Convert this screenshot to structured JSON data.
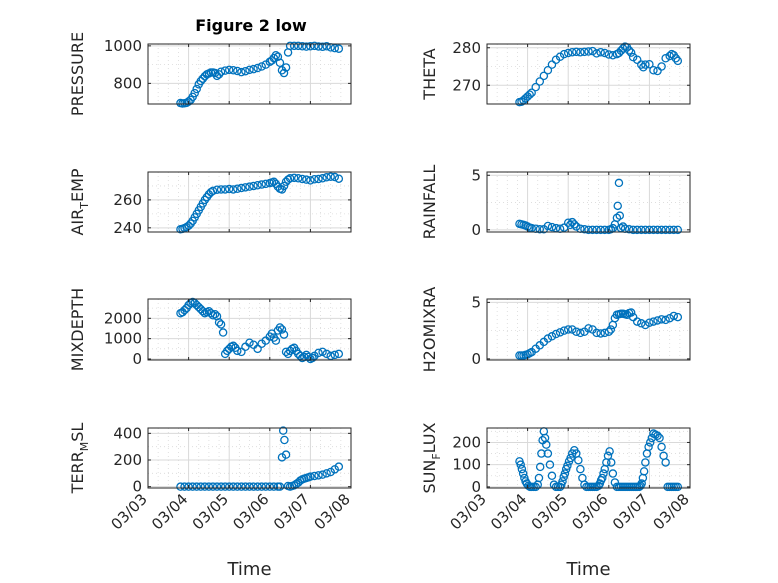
{
  "figure": {
    "title": "Figure 2 low"
  },
  "chart_data": [
    {
      "type": "scatter",
      "ylabel": "PRESSURE",
      "xlabel": "",
      "ylim": [
        690,
        1010
      ],
      "yticks": [
        800,
        1000
      ],
      "x": [
        3.8,
        3.85,
        3.9,
        3.95,
        4.0,
        4.05,
        4.1,
        4.15,
        4.2,
        4.25,
        4.3,
        4.35,
        4.4,
        4.45,
        4.5,
        4.55,
        4.6,
        4.65,
        4.7,
        4.75,
        4.8,
        4.9,
        5.0,
        5.1,
        5.2,
        5.3,
        5.4,
        5.5,
        5.6,
        5.7,
        5.8,
        5.9,
        6.0,
        6.05,
        6.1,
        6.15,
        6.2,
        6.25,
        6.3,
        6.35,
        6.4,
        6.45,
        6.5,
        6.6,
        6.7,
        6.8,
        6.9,
        7.0,
        7.1,
        7.2,
        7.3,
        7.4,
        7.5,
        7.6,
        7.7
      ],
      "y": [
        695,
        693,
        694,
        696,
        703,
        712,
        728,
        748,
        770,
        795,
        812,
        825,
        838,
        848,
        853,
        858,
        858,
        855,
        840,
        848,
        862,
        868,
        872,
        870,
        866,
        860,
        865,
        872,
        876,
        882,
        890,
        900,
        915,
        922,
        935,
        950,
        942,
        910,
        870,
        855,
        885,
        965,
        1000,
        1000,
        1000,
        998,
        996,
        998,
        1000,
        997,
        995,
        998,
        992,
        988,
        985
      ]
    },
    {
      "type": "scatter",
      "ylabel": "THETA",
      "xlabel": "",
      "ylim": [
        265,
        281
      ],
      "yticks": [
        270,
        280
      ],
      "x": [
        3.8,
        3.85,
        3.9,
        3.95,
        4.0,
        4.05,
        4.1,
        4.2,
        4.3,
        4.4,
        4.5,
        4.6,
        4.7,
        4.8,
        4.9,
        5.0,
        5.1,
        5.2,
        5.3,
        5.4,
        5.5,
        5.6,
        5.7,
        5.8,
        5.9,
        6.0,
        6.1,
        6.2,
        6.25,
        6.3,
        6.35,
        6.4,
        6.45,
        6.5,
        6.55,
        6.6,
        6.7,
        6.8,
        6.85,
        6.9,
        7.0,
        7.1,
        7.2,
        7.3,
        7.4,
        7.5,
        7.55,
        7.6,
        7.65,
        7.7
      ],
      "y": [
        265.5,
        265.6,
        266,
        266.5,
        267,
        267.5,
        268,
        269.5,
        271,
        272.5,
        274,
        275.5,
        276.8,
        277.6,
        278.3,
        278.6,
        278.8,
        278.9,
        278.8,
        278.9,
        279,
        279.1,
        278.5,
        278.8,
        278.6,
        278.2,
        278,
        278.3,
        278.6,
        279.2,
        279.8,
        280.3,
        280.1,
        279.3,
        278.7,
        277.5,
        276.8,
        275.5,
        274.8,
        275.5,
        275.6,
        274,
        273.8,
        275,
        277.2,
        277.8,
        278.3,
        278,
        277.2,
        276.5
      ]
    },
    {
      "type": "scatter",
      "ylabel": "AIR_TEMP",
      "xlabel": "",
      "ylim": [
        237,
        280
      ],
      "yticks": [
        240,
        260
      ],
      "x": [
        3.8,
        3.85,
        3.9,
        3.95,
        4.0,
        4.05,
        4.1,
        4.15,
        4.2,
        4.25,
        4.3,
        4.35,
        4.4,
        4.45,
        4.5,
        4.55,
        4.6,
        4.7,
        4.8,
        4.9,
        5.0,
        5.1,
        5.2,
        5.3,
        5.4,
        5.5,
        5.6,
        5.7,
        5.8,
        5.9,
        6.0,
        6.05,
        6.1,
        6.15,
        6.2,
        6.25,
        6.3,
        6.35,
        6.4,
        6.45,
        6.5,
        6.6,
        6.7,
        6.8,
        6.9,
        7.0,
        7.1,
        7.2,
        7.3,
        7.4,
        7.5,
        7.6,
        7.7
      ],
      "y": [
        239,
        239.2,
        239.8,
        240.5,
        241.5,
        243,
        245,
        247.5,
        250,
        252.5,
        255,
        257.5,
        260,
        262,
        264,
        265.5,
        266.5,
        267.3,
        267.5,
        267.5,
        267.8,
        267.5,
        268,
        268.5,
        269,
        269.5,
        270,
        270.5,
        271,
        271.5,
        272,
        272.5,
        273,
        271.5,
        269.5,
        268,
        267.5,
        270,
        273,
        274.5,
        275.5,
        275.8,
        275.5,
        275,
        274.5,
        274,
        274.8,
        275,
        275.5,
        276.2,
        276.6,
        276.4,
        275.2
      ]
    },
    {
      "type": "scatter",
      "ylabel": "RAINFALL",
      "xlabel": "",
      "ylim": [
        -0.2,
        5.3
      ],
      "yticks": [
        0,
        5
      ],
      "x": [
        3.8,
        3.85,
        3.9,
        3.95,
        4.0,
        4.05,
        4.1,
        4.2,
        4.3,
        4.4,
        4.5,
        4.6,
        4.7,
        4.8,
        4.9,
        5.0,
        5.05,
        5.1,
        5.15,
        5.2,
        5.3,
        5.4,
        5.5,
        5.6,
        5.7,
        5.8,
        5.9,
        6.0,
        6.05,
        6.1,
        6.15,
        6.2,
        6.22,
        6.25,
        6.27,
        6.3,
        6.35,
        6.4,
        6.5,
        6.6,
        6.7,
        6.8,
        6.9,
        7.0,
        7.1,
        7.2,
        7.3,
        7.4,
        7.5,
        7.6,
        7.7
      ],
      "y": [
        0.55,
        0.5,
        0.45,
        0.4,
        0.3,
        0.2,
        0.15,
        0.1,
        0.05,
        0.05,
        0.35,
        0.25,
        0.15,
        0.1,
        0.2,
        0.65,
        0.45,
        0.7,
        0.5,
        0.3,
        0.1,
        0.05,
        0,
        0,
        0,
        0,
        0,
        0,
        0.05,
        0.15,
        0.5,
        1.1,
        2.2,
        4.3,
        1.3,
        0.15,
        0.3,
        0.1,
        0.05,
        0,
        0,
        0,
        0,
        0,
        0,
        0,
        0,
        0,
        0,
        0,
        0
      ]
    },
    {
      "type": "scatter",
      "ylabel": "MIXDEPTH",
      "xlabel": "",
      "ylim": [
        -50,
        2950
      ],
      "yticks": [
        0,
        1000,
        2000
      ],
      "x": [
        3.8,
        3.85,
        3.9,
        3.95,
        4.0,
        4.05,
        4.1,
        4.15,
        4.2,
        4.25,
        4.3,
        4.35,
        4.4,
        4.45,
        4.5,
        4.55,
        4.6,
        4.65,
        4.7,
        4.75,
        4.8,
        4.85,
        4.9,
        4.95,
        5.0,
        5.05,
        5.1,
        5.15,
        5.2,
        5.3,
        5.4,
        5.5,
        5.6,
        5.7,
        5.8,
        5.9,
        6.0,
        6.05,
        6.1,
        6.15,
        6.2,
        6.25,
        6.3,
        6.35,
        6.4,
        6.45,
        6.5,
        6.55,
        6.6,
        6.65,
        6.7,
        6.75,
        6.8,
        6.85,
        6.9,
        6.95,
        7.0,
        7.05,
        7.1,
        7.2,
        7.3,
        7.4,
        7.5,
        7.6,
        7.7
      ],
      "y": [
        2250,
        2300,
        2400,
        2500,
        2650,
        2750,
        2800,
        2750,
        2650,
        2550,
        2450,
        2350,
        2250,
        2300,
        2350,
        2250,
        2150,
        2200,
        2100,
        1800,
        1700,
        1300,
        250,
        400,
        500,
        600,
        650,
        550,
        400,
        350,
        600,
        800,
        700,
        500,
        750,
        900,
        1100,
        1250,
        1050,
        900,
        1400,
        1550,
        1450,
        1200,
        350,
        250,
        400,
        500,
        550,
        400,
        250,
        150,
        50,
        100,
        200,
        100,
        0,
        50,
        150,
        300,
        350,
        250,
        150,
        200,
        250
      ]
    },
    {
      "type": "scatter",
      "ylabel": "H2OMIXRA",
      "xlabel": "",
      "ylim": [
        -0.1,
        5.3
      ],
      "yticks": [
        0,
        5
      ],
      "x": [
        3.8,
        3.85,
        3.9,
        3.95,
        4.0,
        4.05,
        4.1,
        4.2,
        4.3,
        4.4,
        4.5,
        4.6,
        4.7,
        4.8,
        4.9,
        5.0,
        5.1,
        5.2,
        5.3,
        5.4,
        5.5,
        5.6,
        5.7,
        5.8,
        5.9,
        6.0,
        6.05,
        6.1,
        6.15,
        6.2,
        6.25,
        6.3,
        6.35,
        6.4,
        6.45,
        6.5,
        6.55,
        6.6,
        6.7,
        6.8,
        6.9,
        7.0,
        7.1,
        7.2,
        7.3,
        7.4,
        7.5,
        7.6,
        7.7
      ],
      "y": [
        0.3,
        0.3,
        0.3,
        0.35,
        0.4,
        0.5,
        0.6,
        0.9,
        1.2,
        1.5,
        1.8,
        2.0,
        2.2,
        2.35,
        2.5,
        2.6,
        2.6,
        2.4,
        2.3,
        2.4,
        2.7,
        2.6,
        2.3,
        2.25,
        2.3,
        2.4,
        2.6,
        3.0,
        3.6,
        3.9,
        3.95,
        4.0,
        4.0,
        3.95,
        3.9,
        4.05,
        4.1,
        3.7,
        3.3,
        3.15,
        3.0,
        3.2,
        3.3,
        3.4,
        3.5,
        3.45,
        3.6,
        3.8,
        3.7
      ]
    },
    {
      "type": "scatter",
      "ylabel": "TERR_MSL",
      "xlabel": "Time",
      "ylim": [
        -10,
        440
      ],
      "yticks": [
        0,
        200,
        400
      ],
      "xlim": [
        "03/03",
        "03/08"
      ],
      "xticks": [
        "03/03",
        "03/04",
        "03/05",
        "03/06",
        "03/07",
        "03/08"
      ],
      "x": [
        3.8,
        3.9,
        4.0,
        4.1,
        4.2,
        4.3,
        4.4,
        4.5,
        4.6,
        4.7,
        4.8,
        4.9,
        5.0,
        5.1,
        5.2,
        5.3,
        5.4,
        5.5,
        5.6,
        5.7,
        5.8,
        5.9,
        6.0,
        6.1,
        6.2,
        6.25,
        6.3,
        6.33,
        6.36,
        6.4,
        6.45,
        6.5,
        6.55,
        6.6,
        6.65,
        6.7,
        6.75,
        6.8,
        6.85,
        6.9,
        6.95,
        7.0,
        7.1,
        7.2,
        7.3,
        7.4,
        7.5,
        7.6,
        7.7
      ],
      "y": [
        0,
        0,
        0,
        0,
        0,
        0,
        0,
        0,
        0,
        0,
        0,
        0,
        0,
        0,
        0,
        0,
        0,
        0,
        0,
        0,
        0,
        0,
        0,
        0,
        0,
        0,
        220,
        420,
        350,
        240,
        5,
        0,
        5,
        10,
        20,
        30,
        45,
        55,
        60,
        65,
        70,
        75,
        80,
        85,
        90,
        100,
        110,
        130,
        150
      ]
    },
    {
      "type": "scatter",
      "ylabel": "SUN_FLUX",
      "xlabel": "Time",
      "ylim": [
        -5,
        265
      ],
      "yticks": [
        0,
        100,
        200
      ],
      "xlim": [
        "03/03",
        "03/08"
      ],
      "xticks": [
        "03/03",
        "03/04",
        "03/05",
        "03/06",
        "03/07",
        "03/08"
      ],
      "x": [
        3.8,
        3.83,
        3.86,
        3.89,
        3.92,
        3.95,
        3.98,
        4.02,
        4.06,
        4.1,
        4.15,
        4.2,
        4.25,
        4.28,
        4.31,
        4.34,
        4.37,
        4.4,
        4.43,
        4.46,
        4.5,
        4.55,
        4.6,
        4.65,
        4.7,
        4.75,
        4.8,
        4.83,
        4.86,
        4.89,
        4.92,
        4.95,
        4.98,
        5.02,
        5.06,
        5.1,
        5.15,
        5.2,
        5.25,
        5.3,
        5.35,
        5.4,
        5.45,
        5.5,
        5.55,
        5.6,
        5.65,
        5.7,
        5.75,
        5.78,
        5.81,
        5.84,
        5.87,
        5.9,
        5.94,
        5.98,
        6.02,
        6.06,
        6.1,
        6.15,
        6.2,
        6.25,
        6.3,
        6.35,
        6.4,
        6.45,
        6.5,
        6.55,
        6.6,
        6.65,
        6.7,
        6.75,
        6.78,
        6.81,
        6.84,
        6.87,
        6.9,
        6.94,
        6.98,
        7.02,
        7.06,
        7.1,
        7.15,
        7.2,
        7.25,
        7.3,
        7.35,
        7.4,
        7.45,
        7.5,
        7.55,
        7.6,
        7.65,
        7.7
      ],
      "y": [
        115,
        100,
        80,
        60,
        40,
        25,
        15,
        5,
        0,
        0,
        0,
        0,
        10,
        40,
        90,
        150,
        210,
        250,
        220,
        190,
        150,
        100,
        50,
        10,
        0,
        0,
        0,
        10,
        25,
        45,
        60,
        80,
        95,
        115,
        130,
        150,
        165,
        150,
        120,
        80,
        40,
        10,
        0,
        0,
        0,
        0,
        0,
        0,
        5,
        15,
        30,
        40,
        60,
        80,
        110,
        140,
        160,
        110,
        60,
        20,
        0,
        0,
        0,
        0,
        0,
        0,
        0,
        0,
        0,
        0,
        0,
        0,
        5,
        15,
        40,
        70,
        110,
        150,
        180,
        200,
        220,
        240,
        235,
        230,
        220,
        180,
        140,
        110,
        0,
        0,
        0,
        0,
        0,
        0
      ]
    }
  ],
  "ylabels": [
    {
      "main": "PRESSURE",
      "sub": "",
      "tail": ""
    },
    {
      "main": "THETA",
      "sub": "",
      "tail": ""
    },
    {
      "main": "AIR",
      "sub": "T",
      "tail": "EMP"
    },
    {
      "main": "RAINFALL",
      "sub": "",
      "tail": ""
    },
    {
      "main": "MIXDEPTH",
      "sub": "",
      "tail": ""
    },
    {
      "main": "H2OMIXRA",
      "sub": "",
      "tail": ""
    },
    {
      "main": "TERR",
      "sub": "M",
      "tail": "SL"
    },
    {
      "main": "SUN",
      "sub": "F",
      "tail": "LUX"
    }
  ],
  "colors": {
    "marker": "#0072bd",
    "grid": "#d9d9d9",
    "axis": "#262626"
  }
}
